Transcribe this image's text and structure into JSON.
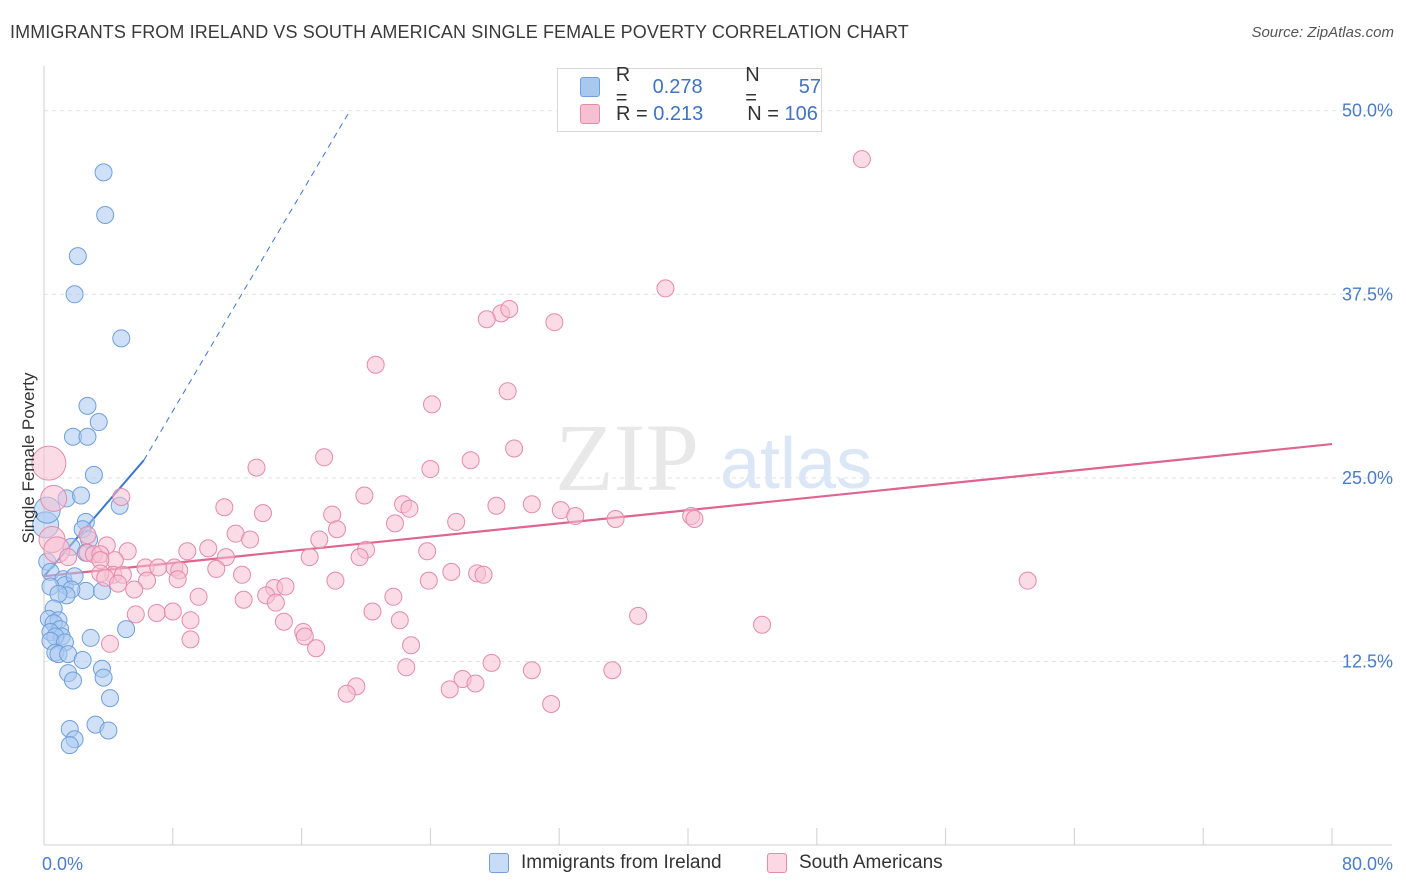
{
  "title": "IMMIGRANTS FROM IRELAND VS SOUTH AMERICAN SINGLE FEMALE POVERTY CORRELATION CHART",
  "source": "Source: ZipAtlas.com",
  "watermark": {
    "zip": "ZIP",
    "atlas": "atlas"
  },
  "legend": {
    "rows": [
      {
        "r_label": "R =",
        "r_value": "0.278",
        "n_label": "N =",
        "n_value": "57",
        "color": "#a9c8f0",
        "border": "#6f9fdc"
      },
      {
        "r_label": "R =",
        "r_value": "0.213",
        "n_label": "N =",
        "n_value": "106",
        "color": "#f7bfd2",
        "border": "#e48aaa"
      }
    ]
  },
  "bottom_legend": [
    {
      "label": "Immigrants from Ireland",
      "color": "#a9c8f0",
      "border": "#6f9fdc"
    },
    {
      "label": "South Americans",
      "color": "#f7bfd2",
      "border": "#e48aaa"
    }
  ],
  "chart_data": {
    "type": "scatter",
    "title": "IMMIGRANTS FROM IRELAND VS SOUTH AMERICAN SINGLE FEMALE POVERTY CORRELATION CHART",
    "xlabel": "",
    "ylabel": "Single Female Poverty",
    "xlim": [
      0,
      80
    ],
    "ylim": [
      0,
      52.5
    ],
    "x_tick_labels": [
      "0.0%",
      "80.0%"
    ],
    "y_ticks": [
      12.5,
      25.0,
      37.5,
      50.0
    ],
    "y_tick_labels": [
      "12.5%",
      "25.0%",
      "37.5%",
      "50.0%"
    ],
    "grid": true,
    "series": [
      {
        "name": "Immigrants from Ireland",
        "color": "#6f9fdc",
        "fill": "#a9c8f0",
        "trend": {
          "x0": 0,
          "y0": 18.3,
          "x1": 6.2,
          "y1": 26.2,
          "dash_to_x": 19.0,
          "dash_to_y": 50.0,
          "color": "#3b76d0"
        },
        "points": [
          [
            3.7,
            45.8
          ],
          [
            3.8,
            42.9
          ],
          [
            2.1,
            40.1
          ],
          [
            1.9,
            37.5
          ],
          [
            4.8,
            34.5
          ],
          [
            2.7,
            29.9
          ],
          [
            3.4,
            28.8
          ],
          [
            1.8,
            27.8
          ],
          [
            2.7,
            27.8
          ],
          [
            3.1,
            25.2
          ],
          [
            4.7,
            23.1
          ],
          [
            1.4,
            23.6
          ],
          [
            2.3,
            23.8
          ],
          [
            2.6,
            22.0
          ],
          [
            2.4,
            21.5
          ],
          [
            1.7,
            20.3
          ],
          [
            2.8,
            20.8
          ],
          [
            2.6,
            19.9
          ],
          [
            0.2,
            19.3
          ],
          [
            0.4,
            18.6
          ],
          [
            1.2,
            18.1
          ],
          [
            1.3,
            17.7
          ],
          [
            1.9,
            18.3
          ],
          [
            2.6,
            17.3
          ],
          [
            1.7,
            17.4
          ],
          [
            3.6,
            17.3
          ],
          [
            1.4,
            17.0
          ],
          [
            0.4,
            17.6
          ],
          [
            0.9,
            17.1
          ],
          [
            0.6,
            16.1
          ],
          [
            0.3,
            15.4
          ],
          [
            0.9,
            15.3
          ],
          [
            0.6,
            15.1
          ],
          [
            1.0,
            14.7
          ],
          [
            0.4,
            14.5
          ],
          [
            1.1,
            14.2
          ],
          [
            0.7,
            14.2
          ],
          [
            0.4,
            13.9
          ],
          [
            1.3,
            13.8
          ],
          [
            2.9,
            14.1
          ],
          [
            5.1,
            14.7
          ],
          [
            0.7,
            13.1
          ],
          [
            0.9,
            13.0
          ],
          [
            1.5,
            13.0
          ],
          [
            2.4,
            12.6
          ],
          [
            1.5,
            11.7
          ],
          [
            1.8,
            11.2
          ],
          [
            3.6,
            12.0
          ],
          [
            3.7,
            11.4
          ],
          [
            4.1,
            10.0
          ],
          [
            3.2,
            8.2
          ],
          [
            1.6,
            7.9
          ],
          [
            4.0,
            7.8
          ],
          [
            1.9,
            7.2
          ],
          [
            1.6,
            6.8
          ],
          [
            0.1,
            21.8
          ],
          [
            0.2,
            22.8
          ]
        ]
      },
      {
        "name": "South Americans",
        "color": "#e48aaa",
        "fill": "#f7bfd2",
        "trend": {
          "x0": 0,
          "y0": 18.3,
          "x1": 80,
          "y1": 27.3,
          "color": "#e0648e"
        },
        "points": [
          [
            50.8,
            46.7
          ],
          [
            38.6,
            37.9
          ],
          [
            28.4,
            36.2
          ],
          [
            31.7,
            35.6
          ],
          [
            27.5,
            35.8
          ],
          [
            28.9,
            36.5
          ],
          [
            20.6,
            32.7
          ],
          [
            28.8,
            30.9
          ],
          [
            24.1,
            30.0
          ],
          [
            17.4,
            26.4
          ],
          [
            26.5,
            26.2
          ],
          [
            29.2,
            27.0
          ],
          [
            13.2,
            25.7
          ],
          [
            24.0,
            25.6
          ],
          [
            4.8,
            23.7
          ],
          [
            19.9,
            23.8
          ],
          [
            22.3,
            23.2
          ],
          [
            22.7,
            22.9
          ],
          [
            28.1,
            23.1
          ],
          [
            30.3,
            23.2
          ],
          [
            32.1,
            22.8
          ],
          [
            33.0,
            22.4
          ],
          [
            11.2,
            23.0
          ],
          [
            13.6,
            22.6
          ],
          [
            17.9,
            22.5
          ],
          [
            21.8,
            21.9
          ],
          [
            25.6,
            22.0
          ],
          [
            40.2,
            22.4
          ],
          [
            40.4,
            22.2
          ],
          [
            11.9,
            21.2
          ],
          [
            18.2,
            21.5
          ],
          [
            2.7,
            21.1
          ],
          [
            3.9,
            20.4
          ],
          [
            12.8,
            20.8
          ],
          [
            17.1,
            20.8
          ],
          [
            10.2,
            20.2
          ],
          [
            20.0,
            20.1
          ],
          [
            23.8,
            20.0
          ],
          [
            5.2,
            20.0
          ],
          [
            8.9,
            20.0
          ],
          [
            2.7,
            19.9
          ],
          [
            3.1,
            19.8
          ],
          [
            3.5,
            19.8
          ],
          [
            4.4,
            19.4
          ],
          [
            11.3,
            19.6
          ],
          [
            16.5,
            19.6
          ],
          [
            19.6,
            19.6
          ],
          [
            3.5,
            19.4
          ],
          [
            6.3,
            18.9
          ],
          [
            7.1,
            18.9
          ],
          [
            8.1,
            18.9
          ],
          [
            8.4,
            18.7
          ],
          [
            10.7,
            18.8
          ],
          [
            12.3,
            18.4
          ],
          [
            6.4,
            18.0
          ],
          [
            8.3,
            18.1
          ],
          [
            18.1,
            18.0
          ],
          [
            23.9,
            18.0
          ],
          [
            25.3,
            18.6
          ],
          [
            26.9,
            18.5
          ],
          [
            27.3,
            18.4
          ],
          [
            4.3,
            18.4
          ],
          [
            4.9,
            18.4
          ],
          [
            3.5,
            18.5
          ],
          [
            3.8,
            18.2
          ],
          [
            4.6,
            17.8
          ],
          [
            5.6,
            17.4
          ],
          [
            14.3,
            17.5
          ],
          [
            15.0,
            17.6
          ],
          [
            13.8,
            17.0
          ],
          [
            14.4,
            16.5
          ],
          [
            21.7,
            16.9
          ],
          [
            9.6,
            16.9
          ],
          [
            12.4,
            16.7
          ],
          [
            7.0,
            15.8
          ],
          [
            8.0,
            15.9
          ],
          [
            20.4,
            15.9
          ],
          [
            36.9,
            15.6
          ],
          [
            44.6,
            15.0
          ],
          [
            9.1,
            15.3
          ],
          [
            14.9,
            15.2
          ],
          [
            22.1,
            15.3
          ],
          [
            16.1,
            14.5
          ],
          [
            16.2,
            14.2
          ],
          [
            9.1,
            14.0
          ],
          [
            16.9,
            13.4
          ],
          [
            22.8,
            13.6
          ],
          [
            4.1,
            13.7
          ],
          [
            5.7,
            15.7
          ],
          [
            27.8,
            12.4
          ],
          [
            30.3,
            11.9
          ],
          [
            22.5,
            12.1
          ],
          [
            26.0,
            11.3
          ],
          [
            35.3,
            11.9
          ],
          [
            19.4,
            10.8
          ],
          [
            26.8,
            11.0
          ],
          [
            25.2,
            10.6
          ],
          [
            18.8,
            10.3
          ],
          [
            35.5,
            22.2
          ],
          [
            31.5,
            9.6
          ],
          [
            61.1,
            18.0
          ],
          [
            0.5,
            20.8
          ],
          [
            0.8,
            20.1
          ],
          [
            1.5,
            19.6
          ],
          [
            0.3,
            26.0
          ],
          [
            0.6,
            23.6
          ]
        ]
      }
    ]
  }
}
